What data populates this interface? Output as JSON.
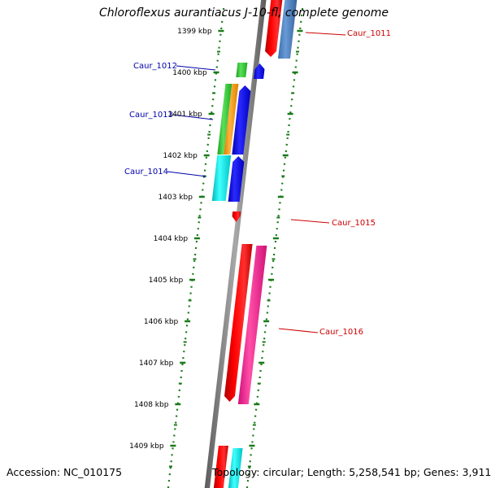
{
  "title": "Chloroflexus aurantiacus J-10-fl, complete genome",
  "accession": "Accession: NC_010175",
  "topology": "Topology: circular; Length: 5,258,541 bp; Genes: 3,911",
  "colors": {
    "axis": "#808080",
    "ticks": "#1a7a1a",
    "forward_label": "#cc0000",
    "reverse_label": "#0000aa",
    "red": "#ff0000",
    "steel_blue": "#4f86c6",
    "green": "#33cc33",
    "orange": "#ff9900",
    "blue": "#0000ee",
    "cyan": "#00e6e6",
    "magenta": "#ff1493"
  },
  "kbp_labels": [
    "1399 kbp",
    "1400 kbp",
    "1401 kbp",
    "1402 kbp",
    "1403 kbp",
    "1404 kbp",
    "1405 kbp",
    "1406 kbp",
    "1407 kbp",
    "1408 kbp",
    "1409 kbp"
  ],
  "gene_labels": {
    "caur_1011": "Caur_1011",
    "caur_1012": "Caur_1012",
    "caur_1013": "Caur_1013",
    "caur_1014": "Caur_1014",
    "caur_1015": "Caur_1015",
    "caur_1016": "Caur_1016"
  }
}
